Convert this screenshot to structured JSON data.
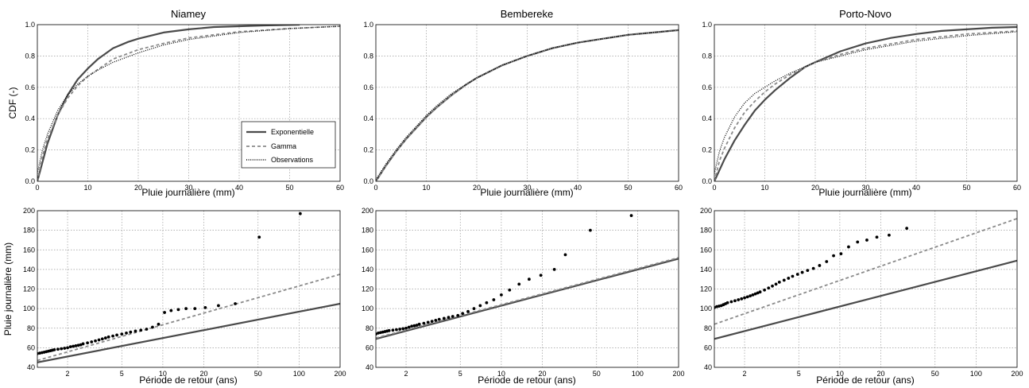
{
  "colors": {
    "exponential": "#4a4a4a",
    "gamma": "#8a8a8a",
    "observations": "#000000"
  },
  "legend": {
    "placement": "lower-right",
    "panel": "Niamey",
    "entries": [
      "Exponentielle",
      "Gamma",
      "Observations"
    ]
  },
  "chart_data": [
    {
      "type": "line",
      "title": "Niamey",
      "xlabel": "Pluie journalière (mm)",
      "ylabel": "CDF (-)",
      "xlim": [
        0,
        60
      ],
      "ylim": [
        0,
        1.0
      ],
      "grid": true,
      "xticks": [
        "0",
        "10",
        "20",
        "30",
        "40",
        "50",
        "60"
      ],
      "yticks": [
        "0.0",
        "0.2",
        "0.4",
        "0.6",
        "0.8",
        "1.0"
      ],
      "series": [
        {
          "name": "Exponentielle",
          "style": "solid",
          "x": [
            0,
            2,
            4,
            6,
            8,
            10,
            12,
            15,
            18,
            20,
            25,
            30,
            35,
            40,
            45,
            52
          ],
          "y": [
            0,
            0.24,
            0.42,
            0.55,
            0.65,
            0.72,
            0.78,
            0.85,
            0.89,
            0.91,
            0.95,
            0.97,
            0.985,
            0.99,
            0.995,
            1.0
          ]
        },
        {
          "name": "Gamma",
          "style": "dashed",
          "x": [
            0,
            1,
            2,
            4,
            6,
            8,
            10,
            15,
            20,
            25,
            30,
            40,
            50,
            60
          ],
          "y": [
            0,
            0.16,
            0.27,
            0.42,
            0.53,
            0.61,
            0.67,
            0.78,
            0.84,
            0.88,
            0.915,
            0.955,
            0.975,
            0.99
          ]
        },
        {
          "name": "Observations",
          "style": "dotted",
          "x": [
            0,
            1,
            2,
            4,
            6,
            8,
            10,
            12,
            15,
            20,
            25,
            30,
            40,
            50,
            60
          ],
          "y": [
            0.05,
            0.2,
            0.3,
            0.45,
            0.55,
            0.62,
            0.67,
            0.71,
            0.76,
            0.82,
            0.87,
            0.905,
            0.95,
            0.975,
            0.99
          ]
        }
      ]
    },
    {
      "type": "line",
      "title": "Bembereke",
      "xlabel": "Pluie journalière (mm)",
      "ylabel": "",
      "xlim": [
        0,
        60
      ],
      "ylim": [
        0,
        1.0
      ],
      "grid": true,
      "xticks": [
        "0",
        "10",
        "20",
        "30",
        "40",
        "50",
        "60"
      ],
      "yticks": [
        "0.0",
        "0.2",
        "0.4",
        "0.6",
        "0.8",
        "1.0"
      ],
      "series": [
        {
          "name": "Exponentielle",
          "style": "solid",
          "x": [
            0,
            2,
            4,
            6,
            8,
            10,
            12,
            15,
            18,
            20,
            25,
            30,
            35,
            40,
            45,
            50,
            55,
            60
          ],
          "y": [
            0,
            0.1,
            0.19,
            0.27,
            0.34,
            0.41,
            0.47,
            0.55,
            0.62,
            0.66,
            0.74,
            0.8,
            0.85,
            0.885,
            0.91,
            0.935,
            0.95,
            0.965
          ]
        },
        {
          "name": "Gamma",
          "style": "dashed",
          "x": [
            0,
            2,
            4,
            6,
            8,
            10,
            12,
            15,
            18,
            20,
            25,
            30,
            35,
            40,
            45,
            50,
            55,
            60
          ],
          "y": [
            0,
            0.1,
            0.19,
            0.27,
            0.34,
            0.41,
            0.47,
            0.55,
            0.62,
            0.66,
            0.74,
            0.8,
            0.85,
            0.885,
            0.91,
            0.935,
            0.95,
            0.965
          ]
        },
        {
          "name": "Observations",
          "style": "dotted",
          "x": [
            0,
            2,
            4,
            6,
            8,
            10,
            12,
            15,
            18,
            20,
            25,
            30,
            35,
            40,
            45,
            50,
            55,
            60
          ],
          "y": [
            0.01,
            0.11,
            0.2,
            0.28,
            0.35,
            0.42,
            0.48,
            0.56,
            0.62,
            0.66,
            0.74,
            0.8,
            0.85,
            0.885,
            0.91,
            0.935,
            0.95,
            0.965
          ]
        }
      ]
    },
    {
      "type": "line",
      "title": "Porto-Novo",
      "xlabel": "Pluie journalière (mm)",
      "ylabel": "",
      "xlim": [
        0,
        60
      ],
      "ylim": [
        0,
        1.0
      ],
      "grid": true,
      "xticks": [
        "0",
        "10",
        "20",
        "30",
        "40",
        "50",
        "60"
      ],
      "yticks": [
        "0.0",
        "0.2",
        "0.4",
        "0.6",
        "0.8",
        "1.0"
      ],
      "series": [
        {
          "name": "Exponentielle",
          "style": "solid",
          "x": [
            0,
            2,
            4,
            6,
            8,
            10,
            12,
            15,
            18,
            20,
            25,
            30,
            35,
            40,
            45,
            50,
            55,
            60
          ],
          "y": [
            0,
            0.14,
            0.26,
            0.36,
            0.45,
            0.52,
            0.58,
            0.66,
            0.73,
            0.76,
            0.83,
            0.88,
            0.915,
            0.94,
            0.96,
            0.97,
            0.98,
            0.985
          ]
        },
        {
          "name": "Gamma",
          "style": "dashed",
          "x": [
            0,
            1,
            2,
            4,
            6,
            8,
            10,
            12,
            15,
            20,
            25,
            30,
            40,
            50,
            60
          ],
          "y": [
            0,
            0.13,
            0.21,
            0.34,
            0.44,
            0.51,
            0.57,
            0.62,
            0.68,
            0.76,
            0.81,
            0.85,
            0.905,
            0.94,
            0.96
          ]
        },
        {
          "name": "Observations",
          "style": "dotted",
          "x": [
            0,
            1,
            2,
            4,
            6,
            8,
            10,
            12,
            15,
            20,
            25,
            30,
            40,
            50,
            60
          ],
          "y": [
            0.05,
            0.19,
            0.28,
            0.41,
            0.5,
            0.56,
            0.6,
            0.64,
            0.69,
            0.76,
            0.8,
            0.84,
            0.895,
            0.93,
            0.955
          ]
        }
      ]
    },
    {
      "type": "scatter",
      "title": "",
      "xlabel": "Période de retour (ans)",
      "ylabel": "Pluie journalière (mm)",
      "xscale": "log",
      "xlim": [
        1.2,
        200
      ],
      "ylim": [
        40,
        200
      ],
      "grid": true,
      "xticks": [
        "2",
        "5",
        "10",
        "20",
        "50",
        "100",
        "200"
      ],
      "yticks": [
        "40",
        "60",
        "80",
        "100",
        "120",
        "140",
        "160",
        "180",
        "200"
      ],
      "series": [
        {
          "name": "Exponentielle",
          "style": "solid",
          "x": [
            1.2,
            200
          ],
          "y": [
            45,
            105
          ]
        },
        {
          "name": "Gamma",
          "style": "dashed",
          "x": [
            1.2,
            200
          ],
          "y": [
            47,
            135
          ]
        },
        {
          "name": "Observations",
          "style": "points",
          "x": [
            1.2,
            1.25,
            1.3,
            1.35,
            1.4,
            1.45,
            1.5,
            1.55,
            1.6,
            1.7,
            1.8,
            1.9,
            2.0,
            2.1,
            2.2,
            2.3,
            2.4,
            2.5,
            2.6,
            2.8,
            3.0,
            3.2,
            3.4,
            3.6,
            3.8,
            4.0,
            4.3,
            4.6,
            5.0,
            5.4,
            5.8,
            6.3,
            6.9,
            7.6,
            8.4,
            9.3,
            10.3,
            11.5,
            13.0,
            14.8,
            17.2,
            20.5,
            25.6,
            34,
            51,
            102
          ],
          "y": [
            54,
            54.5,
            55,
            55.5,
            56,
            56.5,
            57,
            57.5,
            58,
            58.5,
            59,
            59.5,
            60,
            61,
            61.5,
            62,
            62.5,
            63,
            64,
            65,
            66,
            67,
            68,
            69,
            70,
            71,
            72,
            73,
            74,
            75,
            76,
            77,
            78,
            79,
            81,
            84,
            96,
            98,
            99,
            100,
            100,
            101,
            103,
            105,
            173,
            197
          ]
        }
      ]
    },
    {
      "type": "scatter",
      "title": "",
      "xlabel": "Période de retour (ans)",
      "ylabel": "",
      "xscale": "log",
      "xlim": [
        1.2,
        200
      ],
      "ylim": [
        40,
        200
      ],
      "grid": true,
      "xticks": [
        "2",
        "5",
        "10",
        "20",
        "50",
        "100",
        "200"
      ],
      "yticks": [
        "40",
        "60",
        "80",
        "100",
        "120",
        "140",
        "160",
        "180",
        "200"
      ],
      "series": [
        {
          "name": "Exponentielle",
          "style": "solid",
          "x": [
            1.2,
            200
          ],
          "y": [
            69,
            151
          ]
        },
        {
          "name": "Gamma",
          "style": "dashed",
          "x": [
            1.2,
            200
          ],
          "y": [
            70,
            152
          ]
        },
        {
          "name": "Observations",
          "style": "points",
          "x": [
            1.2,
            1.25,
            1.3,
            1.35,
            1.4,
            1.45,
            1.5,
            1.6,
            1.7,
            1.8,
            1.9,
            2.0,
            2.1,
            2.2,
            2.3,
            2.4,
            2.5,
            2.7,
            2.9,
            3.1,
            3.3,
            3.5,
            3.8,
            4.1,
            4.4,
            4.8,
            5.2,
            5.7,
            6.3,
            7.0,
            7.8,
            8.8,
            10.0,
            11.5,
            13.5,
            16.0,
            19.5,
            24.5,
            29.5,
            45,
            90
          ],
          "y": [
            74,
            75,
            75.5,
            76,
            76.5,
            77,
            77.5,
            78,
            78.5,
            79,
            79.5,
            80,
            81,
            82,
            82.5,
            83,
            84,
            85,
            86,
            87,
            88,
            89,
            90,
            91,
            92,
            93,
            95,
            97,
            100,
            103,
            106,
            109,
            114,
            119,
            125,
            130,
            134,
            140,
            155,
            180,
            195
          ]
        }
      ]
    },
    {
      "type": "scatter",
      "title": "",
      "xlabel": "Période de retour (ans)",
      "ylabel": "",
      "xscale": "log",
      "xlim": [
        1.2,
        200
      ],
      "ylim": [
        40,
        200
      ],
      "grid": true,
      "xticks": [
        "2",
        "5",
        "10",
        "20",
        "50",
        "100",
        "200"
      ],
      "yticks": [
        "40",
        "60",
        "80",
        "100",
        "120",
        "140",
        "160",
        "180",
        "200"
      ],
      "series": [
        {
          "name": "Exponentielle",
          "style": "solid",
          "x": [
            1.2,
            200
          ],
          "y": [
            69,
            149
          ]
        },
        {
          "name": "Gamma",
          "style": "dashed",
          "x": [
            1.2,
            200
          ],
          "y": [
            84,
            192
          ]
        },
        {
          "name": "Observations",
          "style": "points",
          "x": [
            1.2,
            1.25,
            1.3,
            1.35,
            1.4,
            1.45,
            1.5,
            1.6,
            1.7,
            1.8,
            1.9,
            2.0,
            2.1,
            2.2,
            2.3,
            2.4,
            2.5,
            2.6,
            2.8,
            3.0,
            3.2,
            3.4,
            3.6,
            3.9,
            4.2,
            4.5,
            4.9,
            5.3,
            5.8,
            6.4,
            7.1,
            8.0,
            9.0,
            10.2,
            11.6,
            13.5,
            15.8,
            18.7,
            23,
            31
          ],
          "y": [
            101,
            102,
            102.5,
            103,
            104,
            105,
            106,
            107,
            108,
            109,
            110,
            111,
            112,
            113,
            114,
            115,
            116,
            117,
            119,
            121,
            123,
            125,
            127,
            129,
            131,
            133,
            135,
            137,
            139,
            141,
            144,
            148,
            154,
            156,
            163,
            168,
            170,
            173,
            175,
            182
          ]
        }
      ]
    }
  ]
}
